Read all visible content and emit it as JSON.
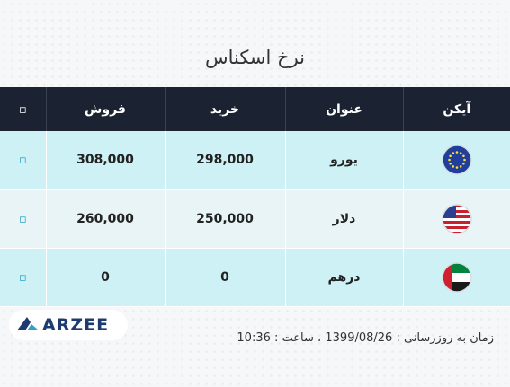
{
  "title": "نرخ اسکناس",
  "table": {
    "headers": {
      "icon": "آیکن",
      "title": "عنوان",
      "buy": "خرید",
      "sell": "فروش",
      "chart": "▫"
    },
    "rows": [
      {
        "flag": "eu-flag-icon",
        "title": "یورو",
        "buy": "298,000",
        "sell": "308,000",
        "chart": "▫"
      },
      {
        "flag": "us-flag-icon",
        "title": "دلار",
        "buy": "250,000",
        "sell": "260,000",
        "chart": "▫"
      },
      {
        "flag": "ae-flag-icon",
        "title": "درهم",
        "buy": "0",
        "sell": "0",
        "chart": "▫"
      }
    ]
  },
  "logo": {
    "text": "ARZEE",
    "icon": "arzee-logo-icon"
  },
  "update": {
    "label": "زمان به روزرسانی :",
    "date": "1399/08/26",
    "sep": "، ساعت :",
    "time": "10:36"
  },
  "colors": {
    "header_bg": "#1b2231",
    "row_cyan": "#cdf1f5",
    "row_light": "#e8f4f6",
    "accent": "#2aa3c4"
  }
}
